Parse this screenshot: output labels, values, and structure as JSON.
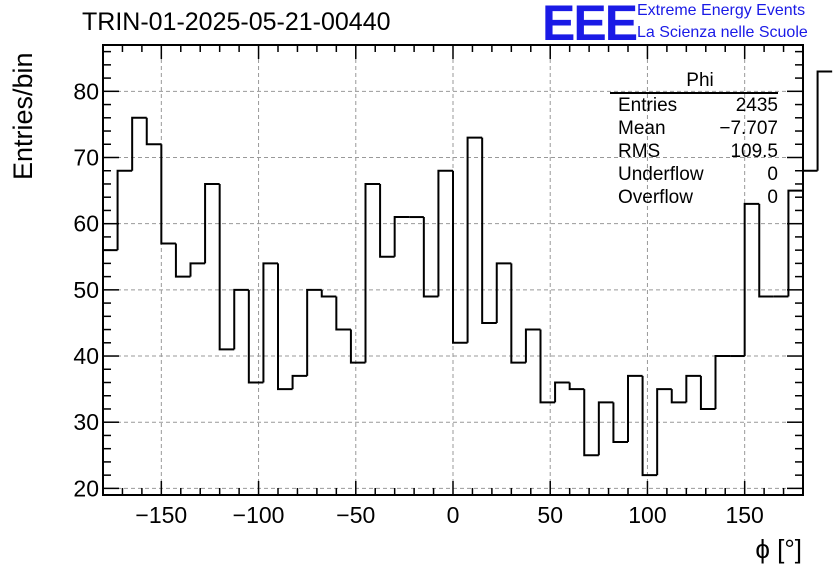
{
  "header": {
    "run_title": "TRIN-01-2025-05-21-00440",
    "logo_text": "EEE",
    "logo_line1": "Extreme Energy Events",
    "logo_line2": "La Scienza nelle Scuole",
    "logo_color": "#1a1ae6"
  },
  "stats_box": {
    "name": "Phi",
    "rows": [
      {
        "label": "Entries",
        "value": "2435"
      },
      {
        "label": "Mean",
        "value": "−7.707"
      },
      {
        "label": "RMS",
        "value": "109.5"
      },
      {
        "label": "Underflow",
        "value": "0"
      },
      {
        "label": "Overflow",
        "value": "0"
      }
    ]
  },
  "chart_data": {
    "type": "bar",
    "style": "step-histogram",
    "xlabel": "ϕ [°]",
    "ylabel": "Entries/bin",
    "xlim": [
      -180,
      180
    ],
    "ylim": [
      19,
      87
    ],
    "bin_width": 7.5,
    "x_ticks": [
      -150,
      -100,
      -50,
      0,
      50,
      100,
      150
    ],
    "x_tick_labels": [
      "−150",
      "−100",
      "−50",
      "0",
      "50",
      "100",
      "150"
    ],
    "y_ticks": [
      20,
      30,
      40,
      50,
      60,
      70,
      80
    ],
    "grid": true,
    "line_color": "#000000",
    "values": [
      56,
      68,
      76,
      72,
      57,
      52,
      54,
      66,
      41,
      50,
      36,
      54,
      35,
      37,
      50,
      49,
      44,
      39,
      66,
      55,
      61,
      61,
      49,
      68,
      42,
      73,
      45,
      54,
      39,
      44,
      33,
      36,
      35,
      25,
      33,
      27,
      37,
      22,
      35,
      33,
      37,
      32,
      40,
      40,
      63,
      49,
      49,
      65,
      68,
      83
    ]
  }
}
